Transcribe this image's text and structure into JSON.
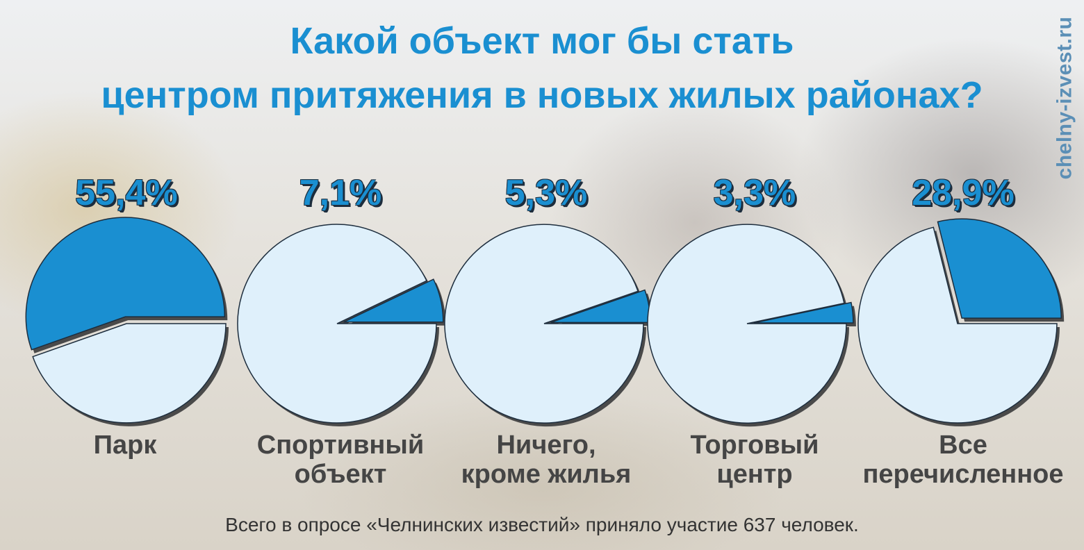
{
  "header": {
    "title_line1": "Какой объект мог бы стать",
    "title_line2": "центром притяжения в новых жилых районах?"
  },
  "watermark": "chelny-izvest.ru",
  "chart_data": {
    "type": "pie",
    "title": "Какой объект мог бы стать центром притяжения в новых жилых районах?",
    "unit": "%",
    "items": [
      {
        "label_lines": [
          "Парк"
        ],
        "value": 55.4,
        "value_label": "55,4%"
      },
      {
        "label_lines": [
          "Спортивный",
          "объект"
        ],
        "value": 7.1,
        "value_label": "7,1%"
      },
      {
        "label_lines": [
          "Ничего,",
          "кроме жилья"
        ],
        "value": 5.3,
        "value_label": "5,3%"
      },
      {
        "label_lines": [
          "Торговый",
          "центр"
        ],
        "value": 3.3,
        "value_label": "3,3%"
      },
      {
        "label_lines": [
          "Все",
          "перечисленное"
        ],
        "value": 28.9,
        "value_label": "28,9%"
      }
    ],
    "colors": {
      "highlight": "#1a8fd1",
      "rest": "#dff0fb",
      "shadow": "#4a4a4a",
      "stroke": "#1d2d3d"
    }
  },
  "footer": "Всего в опросе «Челнинских известий» приняло участие 637 человек."
}
